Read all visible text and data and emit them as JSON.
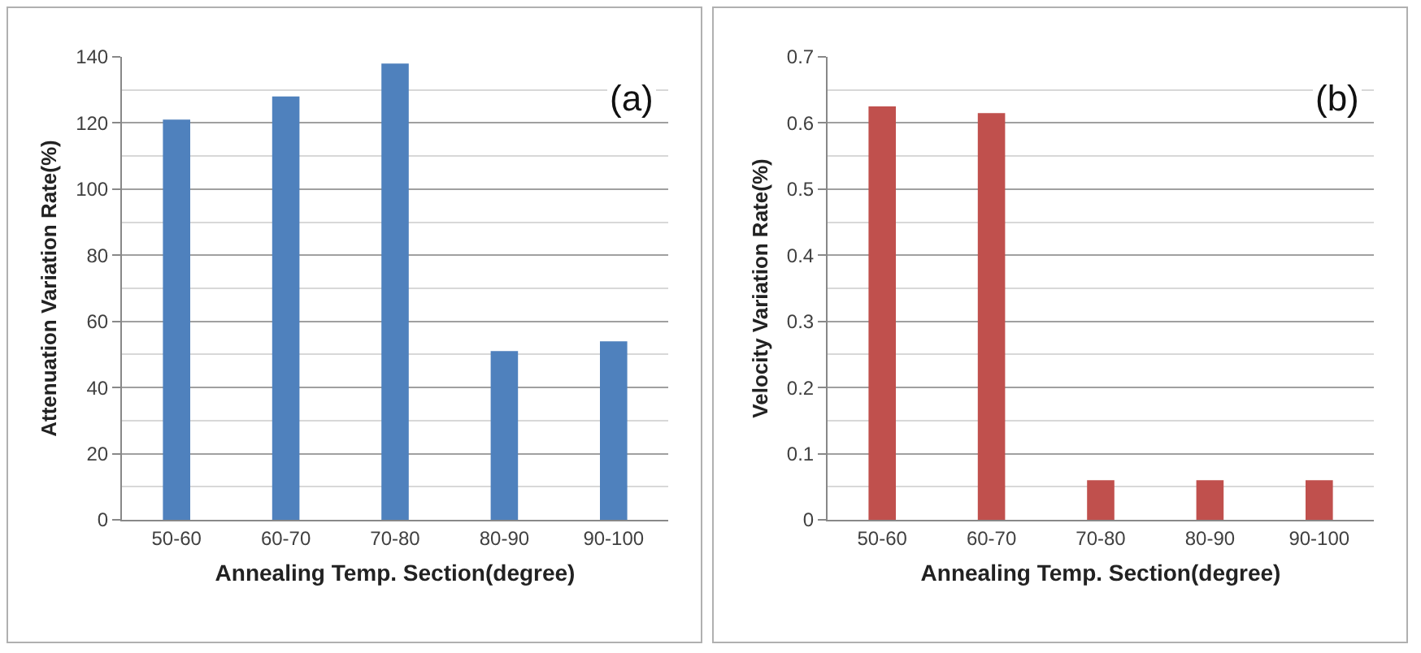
{
  "chart_data": [
    {
      "type": "bar",
      "categories": [
        "50-60",
        "60-70",
        "70-80",
        "80-90",
        "90-100"
      ],
      "values": [
        121,
        128,
        138,
        51,
        54
      ],
      "color": "#4f81bd",
      "xlabel": "Annealing Temp. Section(degree)",
      "ylabel": "Attenuation Variation Rate(%)",
      "ylim": [
        0,
        140
      ],
      "yticks": [
        0,
        20,
        40,
        60,
        80,
        100,
        120,
        140
      ],
      "grid": "y",
      "legend": false,
      "annotations": [
        "(a)"
      ]
    },
    {
      "type": "bar",
      "categories": [
        "50-60",
        "60-70",
        "70-80",
        "80-90",
        "90-100"
      ],
      "values": [
        0.625,
        0.615,
        0.06,
        0.06,
        0.06
      ],
      "color": "#c0504d",
      "xlabel": "Annealing Temp. Section(degree)",
      "ylabel": "Velocity Variation Rate(%)",
      "ylim": [
        0,
        0.7
      ],
      "yticks": [
        0,
        0.1,
        0.2,
        0.3,
        0.4,
        0.5,
        0.6,
        0.7
      ],
      "grid": "y",
      "legend": false,
      "annotations": [
        "(b)"
      ]
    }
  ]
}
